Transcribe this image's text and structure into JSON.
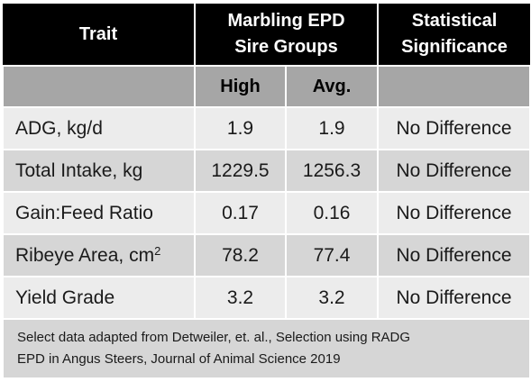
{
  "header": {
    "trait_label": "Trait",
    "group_line1": "Marbling EPD",
    "group_line2": "Sire Groups",
    "significance_line1": "Statistical",
    "significance_line2": "Significance"
  },
  "subheader": {
    "high_label": "High",
    "avg_label": "Avg.",
    "blank": ""
  },
  "rows": [
    {
      "trait": "ADG, kg/d",
      "high": "1.9",
      "avg": "1.9",
      "significance": "No Difference"
    },
    {
      "trait": "Total Intake, kg",
      "high": "1229.5",
      "avg": "1256.3",
      "significance": "No Difference"
    },
    {
      "trait": "Gain:Feed Ratio",
      "high": "0.17",
      "avg": "0.16",
      "significance": "No Difference"
    },
    {
      "trait": "Ribeye Area, cm",
      "trait_sup": "2",
      "high": "78.2",
      "avg": "77.4",
      "significance": "No Difference"
    },
    {
      "trait": "Yield Grade",
      "high": "3.2",
      "avg": "3.2",
      "significance": "No Difference"
    }
  ],
  "footnote": {
    "line1": "Select data adapted from Detweiler, et. al., Selection using RADG",
    "line2": "EPD in Angus Steers, Journal of Animal Science 2019"
  },
  "colors": {
    "header_bg": "#000000",
    "subheader_bg": "#a6a6a6",
    "row_light": "#ececec",
    "row_dark": "#d6d6d6"
  }
}
